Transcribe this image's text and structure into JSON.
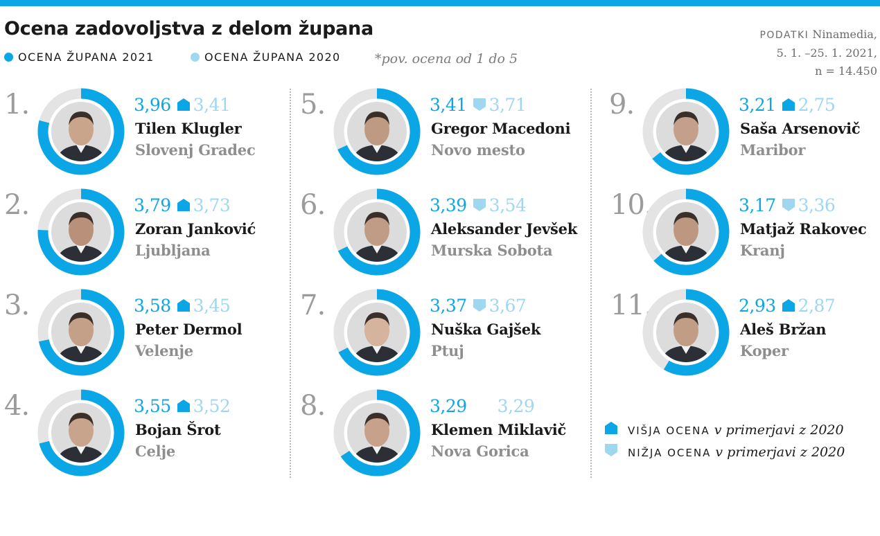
{
  "title": "Ocena zadovoljstva z delom župana",
  "legend": {
    "s2021": "OCENA ŽUPANA 2021",
    "s2020": "OCENA ŽUPANA 2020",
    "note": "*pov. ocena od 1 do 5"
  },
  "source": {
    "label": "PODATKI",
    "line1": "Ninamedia,",
    "line2": "5. 1. –25. 1. 2021,",
    "line3": "n = 14.450"
  },
  "key": {
    "up_caps": "VIŠJA OCENA",
    "down_caps": "NIŽJA OCENA",
    "suffix": "v primerjavi z 2020"
  },
  "colors": {
    "accent_2021": "#0aa6e6",
    "light_2020": "#9fd7f0",
    "track": "#e4e4e4",
    "rank_grey": "#9b9b9b",
    "city_grey": "#8e8e8e"
  },
  "chart_data": {
    "type": "donut-ranking",
    "scale_max": 5,
    "series": [
      {
        "name": "OCENA ŽUPANA 2021"
      },
      {
        "name": "OCENA ŽUPANA 2020"
      }
    ],
    "items": [
      {
        "rank": "1.",
        "name": "Tilen Klugler",
        "city": "Slovenj Gradec",
        "score2021": 3.96,
        "score2020": 3.41,
        "label2021": "3,96",
        "label2020": "3,41",
        "trend": "up"
      },
      {
        "rank": "2.",
        "name": "Zoran Janković",
        "city": "Ljubljana",
        "score2021": 3.79,
        "score2020": 3.73,
        "label2021": "3,79",
        "label2020": "3,73",
        "trend": "up"
      },
      {
        "rank": "3.",
        "name": "Peter Dermol",
        "city": "Velenje",
        "score2021": 3.58,
        "score2020": 3.45,
        "label2021": "3,58",
        "label2020": "3,45",
        "trend": "up"
      },
      {
        "rank": "4.",
        "name": "Bojan Šrot",
        "city": "Celje",
        "score2021": 3.55,
        "score2020": 3.52,
        "label2021": "3,55",
        "label2020": "3,52",
        "trend": "up"
      },
      {
        "rank": "5.",
        "name": "Gregor Macedoni",
        "city": "Novo mesto",
        "score2021": 3.41,
        "score2020": 3.71,
        "label2021": "3,41",
        "label2020": "3,71",
        "trend": "down"
      },
      {
        "rank": "6.",
        "name": "Aleksander Jevšek",
        "city": "Murska Sobota",
        "score2021": 3.39,
        "score2020": 3.54,
        "label2021": "3,39",
        "label2020": "3,54",
        "trend": "down"
      },
      {
        "rank": "7.",
        "name": "Nuška Gajšek",
        "city": "Ptuj",
        "score2021": 3.37,
        "score2020": 3.67,
        "label2021": "3,37",
        "label2020": "3,67",
        "trend": "down"
      },
      {
        "rank": "8.",
        "name": "Klemen Miklavič",
        "city": "Nova Gorica",
        "score2021": 3.29,
        "score2020": 3.29,
        "label2021": "3,29",
        "label2020": "3,29",
        "trend": "same"
      },
      {
        "rank": "9.",
        "name": "Saša Arsenovič",
        "city": "Maribor",
        "score2021": 3.21,
        "score2020": 2.75,
        "label2021": "3,21",
        "label2020": "2,75",
        "trend": "up"
      },
      {
        "rank": "10.",
        "name": "Matjaž Rakovec",
        "city": "Kranj",
        "score2021": 3.17,
        "score2020": 3.36,
        "label2021": "3,17",
        "label2020": "3,36",
        "trend": "down"
      },
      {
        "rank": "11.",
        "name": "Aleš Bržan",
        "city": "Koper",
        "score2021": 2.93,
        "score2020": 2.87,
        "label2021": "2,93",
        "label2020": "2,87",
        "trend": "up"
      }
    ]
  }
}
